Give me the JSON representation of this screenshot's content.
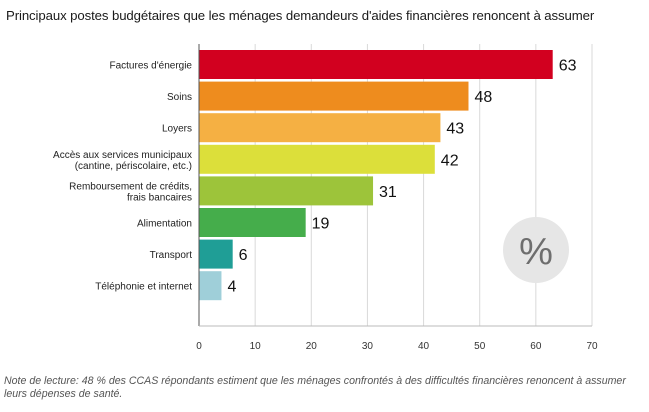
{
  "title": "Principaux postes budgétaires que les ménages demandeurs d'aides financières renoncent à assumer",
  "note": "Note de lecture: 48 % des CCAS répondants estiment que les ménages confrontés à des difficultés financières renoncent à assumer leurs dépenses de santé.",
  "badge": "%",
  "chart_data": {
    "type": "bar",
    "orientation": "horizontal",
    "categories": [
      [
        "Factures d'énergie"
      ],
      [
        "Soins"
      ],
      [
        "Loyers"
      ],
      [
        "Accès aux services municipaux",
        "(cantine, périscolaire, etc.)"
      ],
      [
        "Remboursement de crédits,",
        "frais bancaires"
      ],
      [
        "Alimentation"
      ],
      [
        "Transport"
      ],
      [
        "Téléphonie et internet"
      ]
    ],
    "values": [
      63,
      48,
      43,
      42,
      31,
      19,
      6,
      4
    ],
    "colors": [
      "#d2001f",
      "#ee8c1e",
      "#f5b043",
      "#dcdf3a",
      "#9dc43a",
      "#45ad4b",
      "#1f9e96",
      "#9fcfd9"
    ],
    "xlim": [
      0,
      70
    ],
    "xticks": [
      0,
      10,
      20,
      30,
      40,
      50,
      60,
      70
    ],
    "grid": true,
    "unit": "%"
  }
}
